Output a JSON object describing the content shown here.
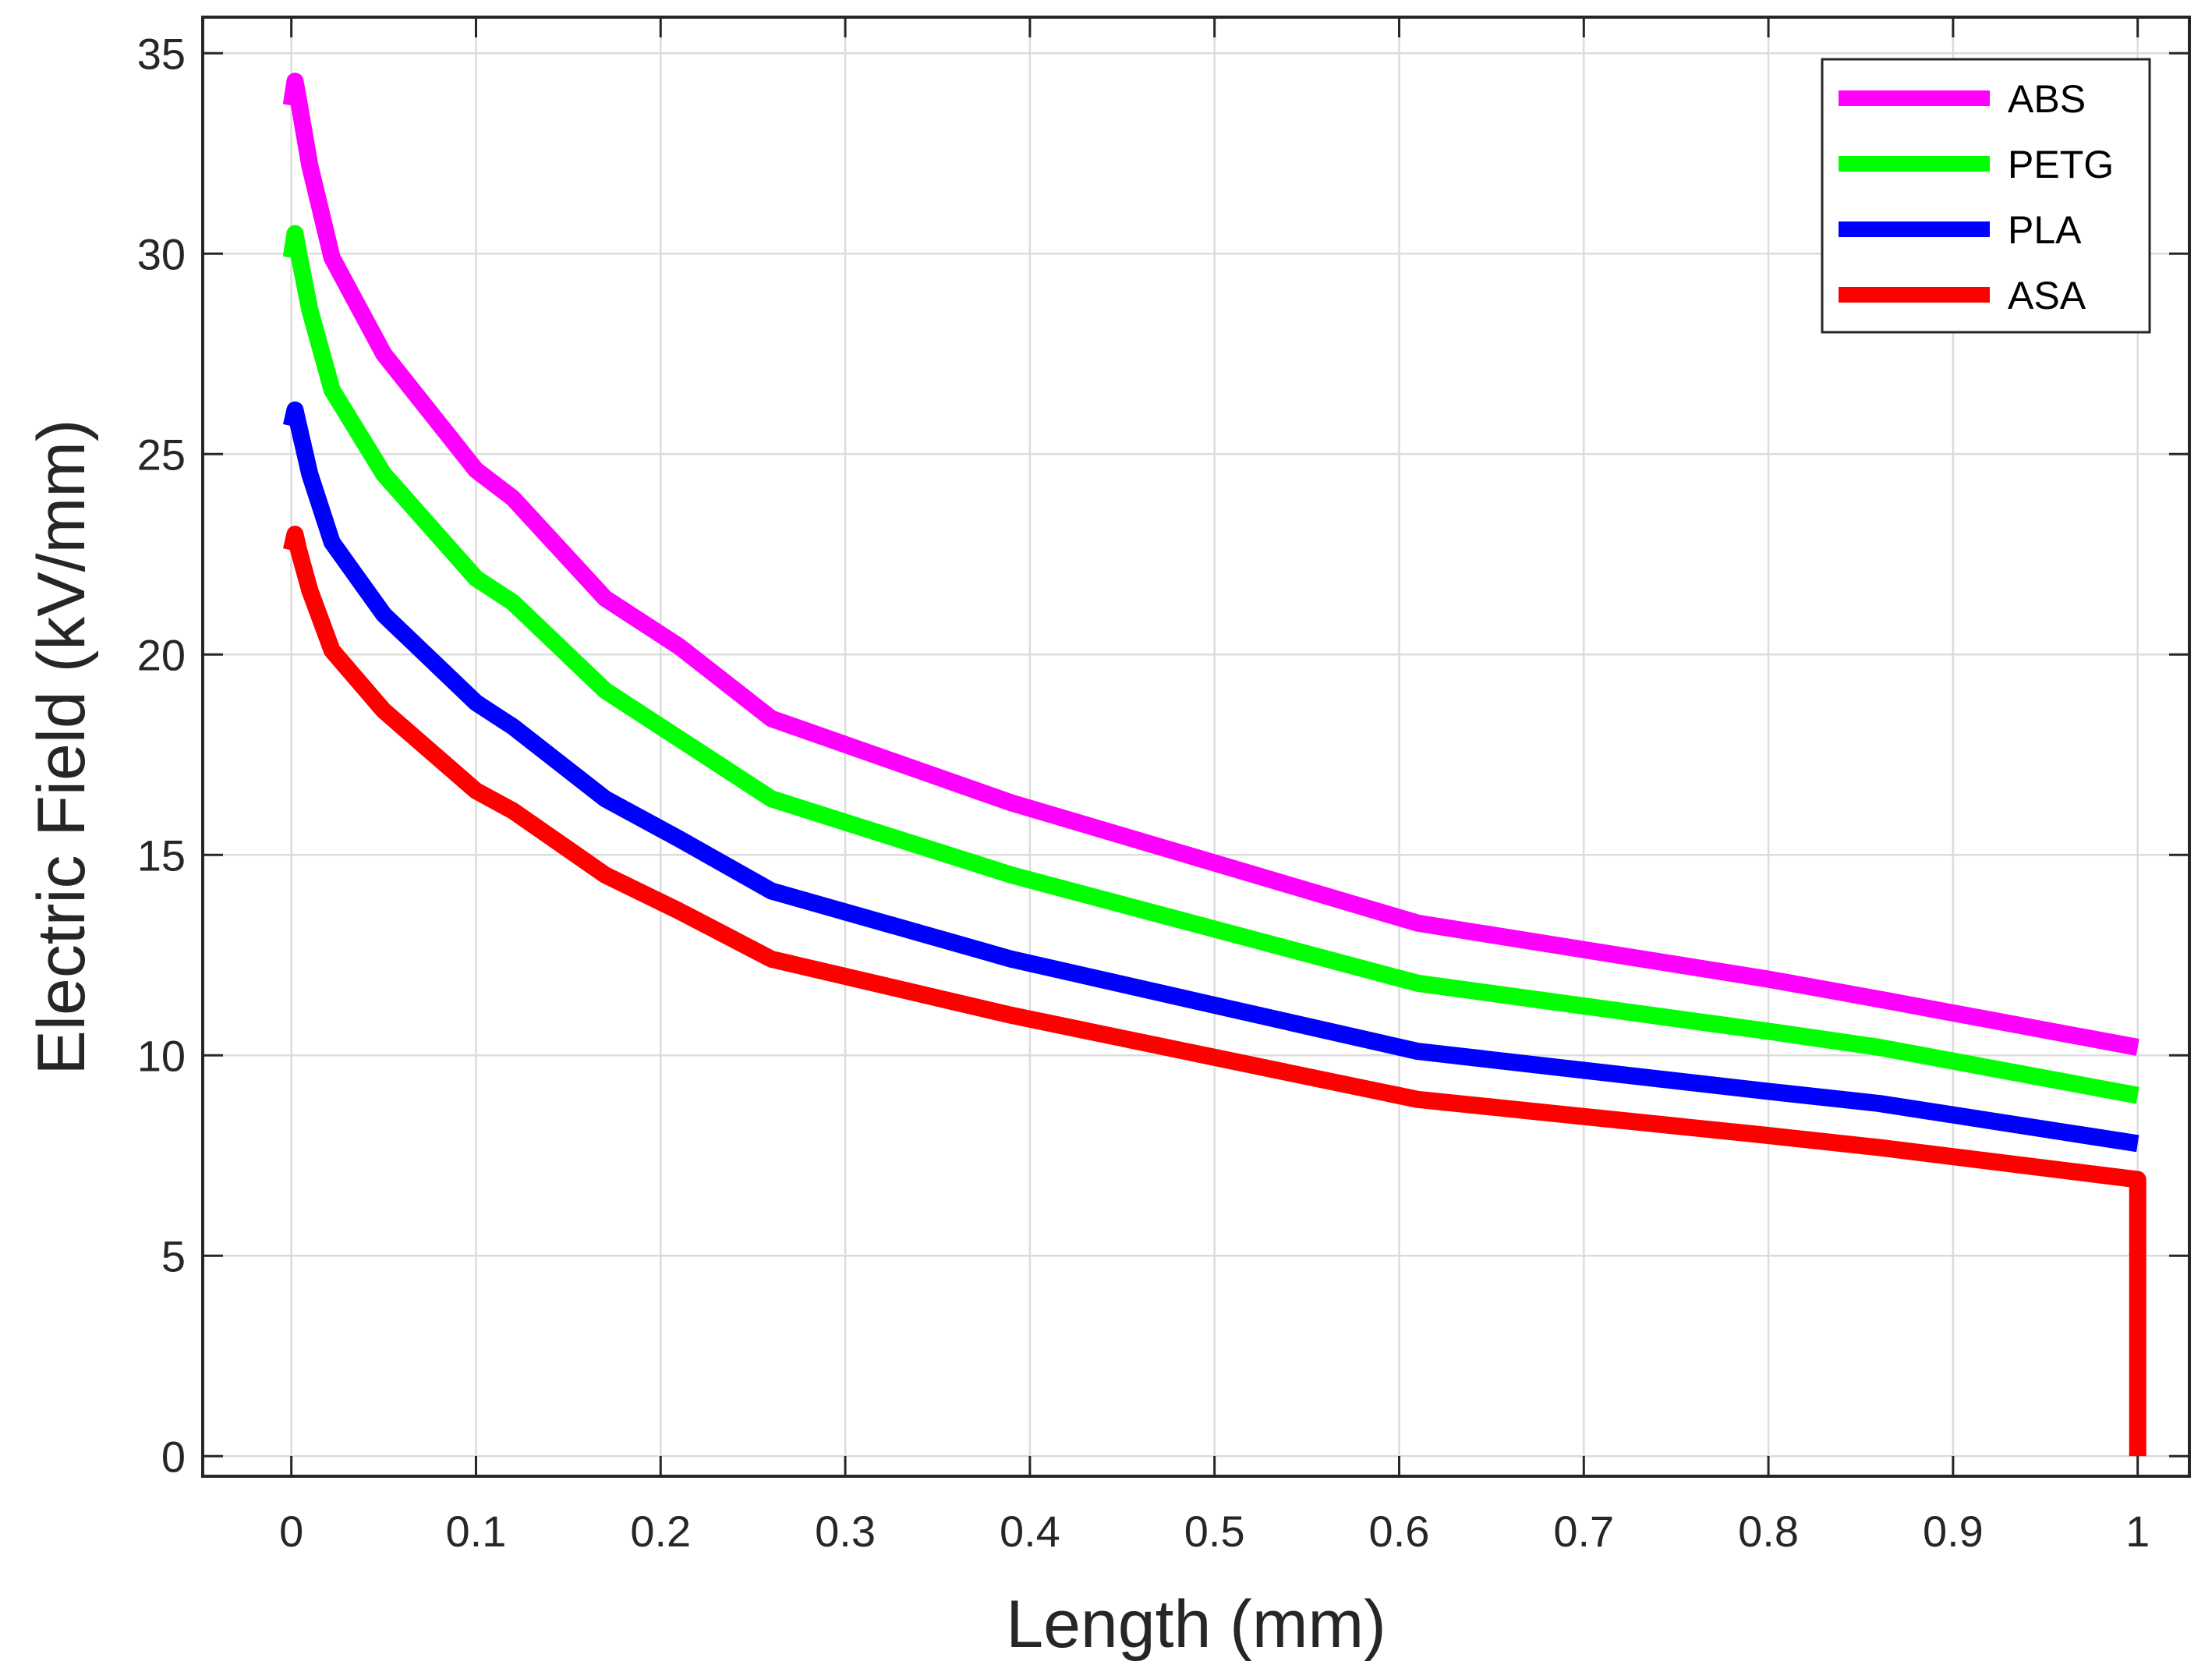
{
  "chart_data": {
    "type": "line",
    "title": "",
    "xlabel": "Length (mm)",
    "ylabel": "Electric Field (kV/mm)",
    "xlim": [
      -0.048,
      1.028
    ],
    "ylim": [
      -0.5,
      35.9
    ],
    "xticks": [
      0,
      0.1,
      0.2,
      0.3,
      0.4,
      0.5,
      0.6,
      0.7,
      0.8,
      0.9,
      1
    ],
    "xtick_labels": [
      "0",
      "0.1",
      "0.2",
      "0.3",
      "0.4",
      "0.5",
      "0.6",
      "0.7",
      "0.8",
      "0.9",
      "1"
    ],
    "yticks": [
      0,
      5,
      10,
      15,
      20,
      25,
      30,
      35
    ],
    "ytick_labels": [
      "0",
      "5",
      "10",
      "15",
      "20",
      "25",
      "30",
      "35"
    ],
    "grid": true,
    "legend_position": "top-right",
    "series": [
      {
        "name": "ABS",
        "color": "#ff00ff",
        "x": [
          0,
          0.002,
          0.004,
          0.01,
          0.022,
          0.05,
          0.1,
          0.12,
          0.17,
          0.21,
          0.26,
          0.39,
          0.61,
          0.8,
          0.86,
          1.0
        ],
        "y": [
          33.7,
          34.3,
          33.8,
          32.2,
          29.9,
          27.5,
          24.6,
          23.9,
          21.4,
          20.2,
          18.4,
          16.3,
          13.3,
          11.9,
          11.4,
          10.2
        ]
      },
      {
        "name": "PETG",
        "color": "#00ff00",
        "x": [
          0,
          0.002,
          0.004,
          0.01,
          0.022,
          0.05,
          0.1,
          0.12,
          0.17,
          0.21,
          0.26,
          0.39,
          0.61,
          0.8,
          0.86,
          1.0
        ],
        "y": [
          29.9,
          30.5,
          30.0,
          28.6,
          26.6,
          24.5,
          21.9,
          21.3,
          19.1,
          17.9,
          16.4,
          14.5,
          11.8,
          10.6,
          10.2,
          9.0
        ]
      },
      {
        "name": "PLA",
        "color": "#0000ff",
        "x": [
          0,
          0.002,
          0.004,
          0.01,
          0.022,
          0.05,
          0.1,
          0.12,
          0.17,
          0.21,
          0.26,
          0.39,
          0.61,
          0.8,
          0.86,
          1.0
        ],
        "y": [
          25.7,
          26.1,
          25.7,
          24.5,
          22.8,
          21.0,
          18.8,
          18.2,
          16.4,
          15.4,
          14.1,
          12.4,
          10.1,
          9.1,
          8.8,
          7.8
        ]
      },
      {
        "name": "ASA",
        "color": "#ff0000",
        "x": [
          0,
          0.002,
          0.004,
          0.01,
          0.022,
          0.05,
          0.1,
          0.12,
          0.17,
          0.21,
          0.26,
          0.39,
          0.61,
          0.8,
          0.86,
          1.0,
          1.0
        ],
        "y": [
          22.6,
          23.0,
          22.6,
          21.6,
          20.1,
          18.6,
          16.6,
          16.1,
          14.5,
          13.6,
          12.4,
          11.0,
          8.9,
          8.0,
          7.7,
          6.9,
          0
        ]
      }
    ]
  }
}
